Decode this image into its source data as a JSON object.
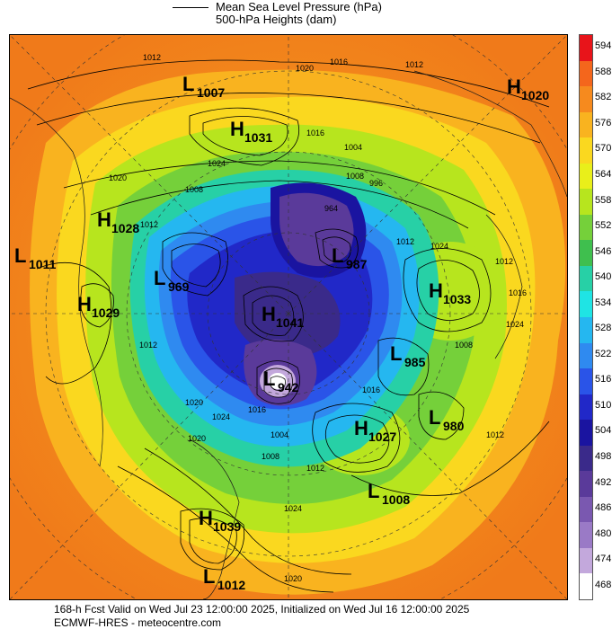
{
  "legend": {
    "line_label_1": "Mean Sea Level Pressure (hPa)",
    "line_label_2": "500-hPa Heights (dam)"
  },
  "colorbar": {
    "labels": [
      "594",
      "588",
      "582",
      "576",
      "570",
      "564",
      "558",
      "552",
      "546",
      "540",
      "534",
      "528",
      "522",
      "516",
      "510",
      "504",
      "498",
      "492",
      "486",
      "480",
      "474",
      "468"
    ],
    "colors": [
      "#e8141a",
      "#f4661c",
      "#f68a1e",
      "#f9b31f",
      "#fad81f",
      "#e9ef1a",
      "#b7e51e",
      "#75d03a",
      "#3fbf4e",
      "#27d0a6",
      "#1fe4e4",
      "#25b7f0",
      "#2f8af0",
      "#2a54e8",
      "#2128c8",
      "#1a14a0",
      "#3a2a8a",
      "#5a3a9a",
      "#7a58b0",
      "#9a7ac6",
      "#c3a8dc",
      "#ffffff"
    ]
  },
  "systems": [
    {
      "type": "L",
      "value": "1007"
    },
    {
      "type": "H",
      "value": "1031"
    },
    {
      "type": "H",
      "value": "1020"
    },
    {
      "type": "H",
      "value": "1028"
    },
    {
      "type": "L",
      "value": "1011"
    },
    {
      "type": "H",
      "value": "1029"
    },
    {
      "type": "L",
      "value": "969"
    },
    {
      "type": "L",
      "value": "987"
    },
    {
      "type": "H",
      "value": "1033"
    },
    {
      "type": "H",
      "value": "1041"
    },
    {
      "type": "L",
      "value": "985"
    },
    {
      "type": "L",
      "value": "942"
    },
    {
      "type": "L",
      "value": "980"
    },
    {
      "type": "H",
      "value": "1027"
    },
    {
      "type": "L",
      "value": "1008"
    },
    {
      "type": "H",
      "value": "1039"
    },
    {
      "type": "L",
      "value": "1012"
    }
  ],
  "isobar_labels": [
    "1012",
    "1020",
    "1016",
    "1012",
    "1024",
    "1016",
    "1020",
    "1008",
    "1004",
    "996",
    "964",
    "1008",
    "1012",
    "1024",
    "1012",
    "1016",
    "1008",
    "1024",
    "1012",
    "1016",
    "1020",
    "1012",
    "1020",
    "1024",
    "1008",
    "1004",
    "1012",
    "1024",
    "1020",
    "1016",
    "1012"
  ],
  "footer": {
    "line_1": "168-h Fcst Valid on Wed Jul 23 12:00:00 2025, Initialized on Wed Jul 16 12:00:00 2025",
    "line_2": "ECMWF-HRES  - meteocentre.com"
  }
}
